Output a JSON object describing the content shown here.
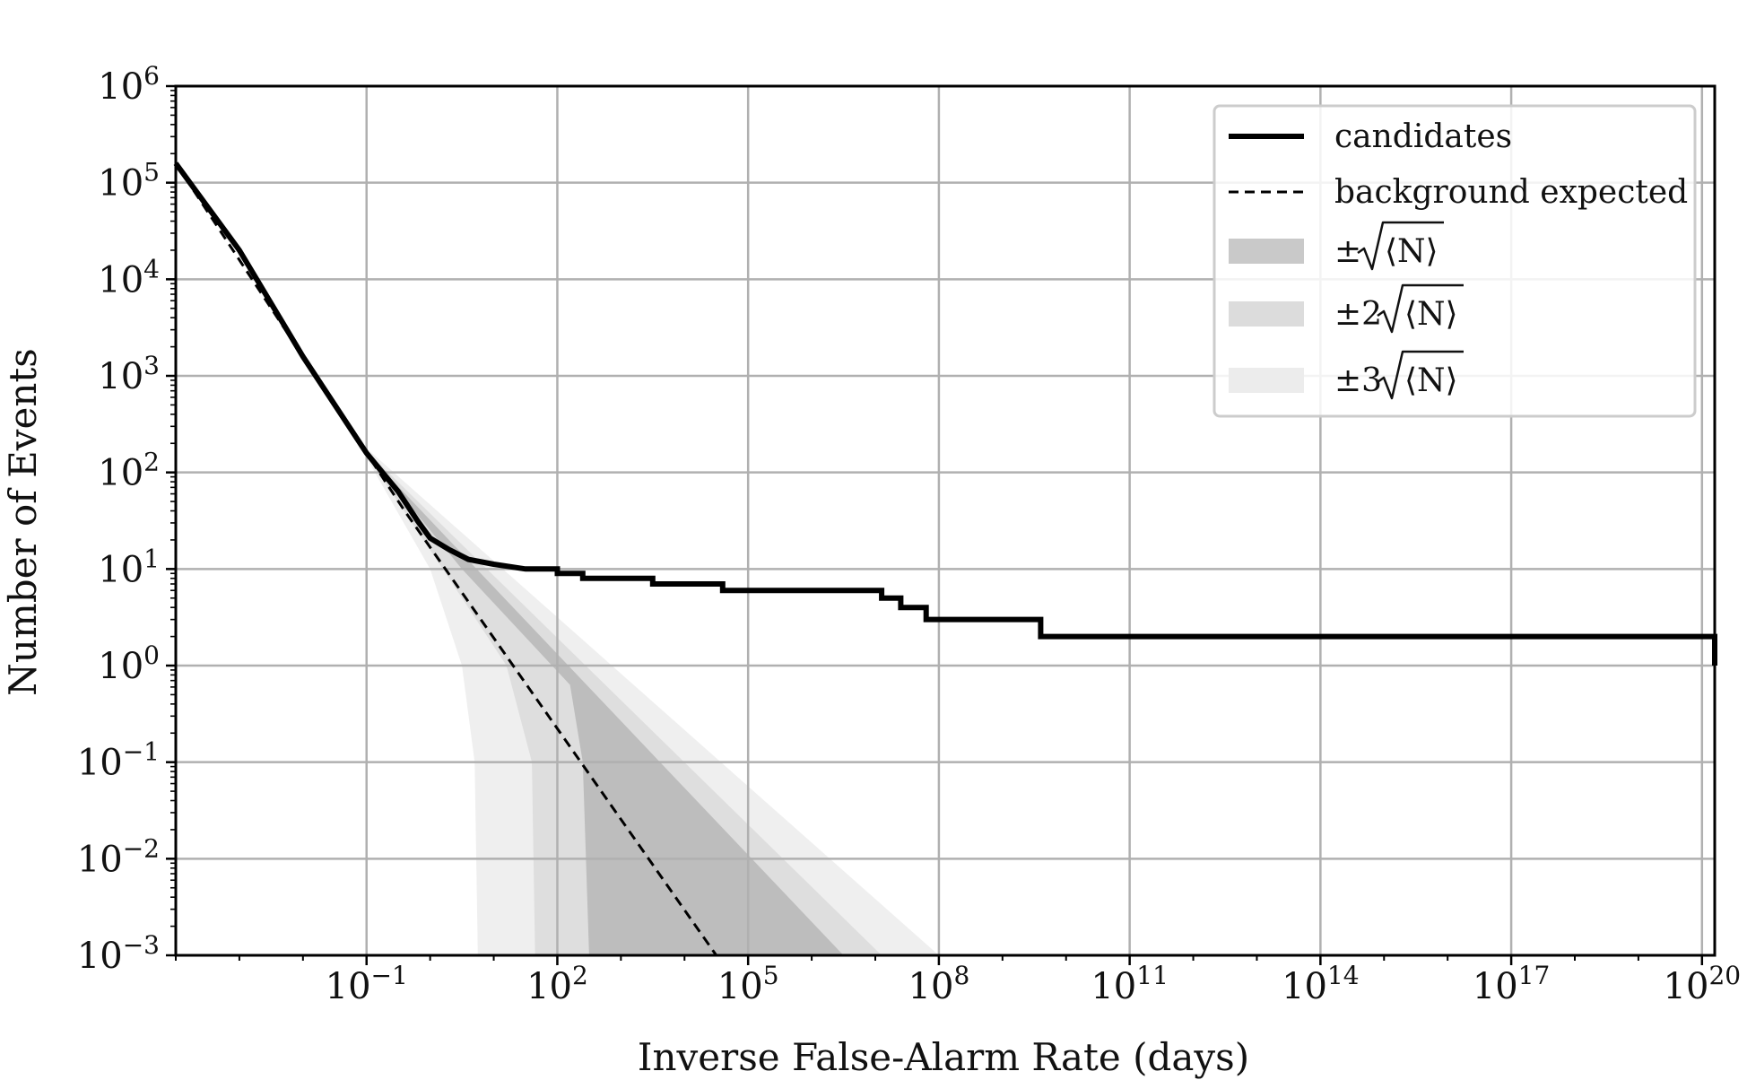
{
  "chart_data": {
    "type": "line",
    "title": "",
    "xlabel": "Inverse False-Alarm Rate (days)",
    "ylabel": "Number of Events",
    "xscale": "log",
    "yscale": "log",
    "xlim_log10": [
      -4,
      20.2
    ],
    "ylim_log10": [
      -3,
      6
    ],
    "grid": true,
    "x_ticks": [
      {
        "base": "10",
        "exp": "−1",
        "log10": -1
      },
      {
        "base": "10",
        "exp": "2",
        "log10": 2
      },
      {
        "base": "10",
        "exp": "5",
        "log10": 5
      },
      {
        "base": "10",
        "exp": "8",
        "log10": 8
      },
      {
        "base": "10",
        "exp": "11",
        "log10": 11
      },
      {
        "base": "10",
        "exp": "14",
        "log10": 14
      },
      {
        "base": "10",
        "exp": "17",
        "log10": 17
      },
      {
        "base": "10",
        "exp": "20",
        "log10": 20
      }
    ],
    "y_ticks": [
      {
        "base": "10",
        "exp": "−3",
        "log10": -3
      },
      {
        "base": "10",
        "exp": "−2",
        "log10": -2
      },
      {
        "base": "10",
        "exp": "−1",
        "log10": -1
      },
      {
        "base": "10",
        "exp": "0",
        "log10": 0
      },
      {
        "base": "10",
        "exp": "1",
        "log10": 1
      },
      {
        "base": "10",
        "exp": "2",
        "log10": 2
      },
      {
        "base": "10",
        "exp": "3",
        "log10": 3
      },
      {
        "base": "10",
        "exp": "4",
        "log10": 4
      },
      {
        "base": "10",
        "exp": "5",
        "log10": 5
      },
      {
        "base": "10",
        "exp": "6",
        "log10": 6
      }
    ],
    "series": [
      {
        "name": "candidates",
        "style": "solid-step",
        "color": "#000000",
        "points_log10": [
          [
            -4,
            5.2
          ],
          [
            -3,
            4.3
          ],
          [
            -2,
            3.2
          ],
          [
            -1,
            2.2
          ],
          [
            -0.5,
            1.8
          ],
          [
            -0.2,
            1.5
          ],
          [
            0,
            1.32
          ],
          [
            0.3,
            1.2
          ],
          [
            0.6,
            1.1
          ],
          [
            1.0,
            1.05
          ],
          [
            1.5,
            1.0
          ],
          [
            2.0,
            1.0
          ],
          [
            2.0,
            0.954
          ],
          [
            2.4,
            0.954
          ],
          [
            2.4,
            0.903
          ],
          [
            3.5,
            0.903
          ],
          [
            3.5,
            0.845
          ],
          [
            4.6,
            0.845
          ],
          [
            4.6,
            0.778
          ],
          [
            7.1,
            0.778
          ],
          [
            7.1,
            0.699
          ],
          [
            7.4,
            0.699
          ],
          [
            7.4,
            0.602
          ],
          [
            7.8,
            0.602
          ],
          [
            7.8,
            0.477
          ],
          [
            9.6,
            0.477
          ],
          [
            9.6,
            0.301
          ],
          [
            20.2,
            0.301
          ],
          [
            20.2,
            0
          ]
        ]
      },
      {
        "name": "background expected",
        "style": "dashed",
        "color": "#000000",
        "points_log10": [
          [
            -4,
            5.2
          ],
          [
            -1,
            2.2
          ],
          [
            -0.4,
            1.6
          ],
          [
            4.5,
            -3
          ]
        ]
      }
    ],
    "bands": [
      {
        "name": "±3√⟨N⟩",
        "color": "#efefef",
        "upper_log10": [
          [
            -1,
            2.25
          ],
          [
            8.0,
            -3
          ]
        ],
        "lower_log10": [
          [
            -1,
            2.15
          ],
          [
            0.0,
            1.0
          ],
          [
            0.5,
            0.0
          ],
          [
            0.7,
            -1.0
          ],
          [
            0.75,
            -3
          ]
        ]
      },
      {
        "name": "±2√⟨N⟩",
        "color": "#dedede",
        "upper_log10": [
          [
            -1,
            2.22
          ],
          [
            7.1,
            -3
          ]
        ],
        "lower_log10": [
          [
            -1,
            2.18
          ],
          [
            0.2,
            1.0
          ],
          [
            1.2,
            0.0
          ],
          [
            1.6,
            -1.0
          ],
          [
            1.65,
            -3
          ]
        ]
      },
      {
        "name": "±√⟨N⟩",
        "color": "#bdbdbd",
        "upper_log10": [
          [
            -1,
            2.2
          ],
          [
            6.5,
            -3
          ]
        ],
        "lower_log10": [
          [
            -1,
            2.2
          ],
          [
            0.5,
            1.0
          ],
          [
            2.2,
            -0.2
          ],
          [
            2.4,
            -1.0
          ],
          [
            2.5,
            -3
          ]
        ]
      }
    ],
    "legend": {
      "location": "upper right",
      "entries": [
        {
          "label": "candidates",
          "kind": "solid"
        },
        {
          "label": "background expected",
          "kind": "dashed"
        },
        {
          "label": "±",
          "mult": "",
          "kind": "band1",
          "color": "#c9c9c9"
        },
        {
          "label": "±",
          "mult": "2",
          "kind": "band2",
          "color": "#dcdcdc"
        },
        {
          "label": "±",
          "mult": "3",
          "kind": "band3",
          "color": "#ececec"
        }
      ],
      "band_symbol": "N"
    }
  }
}
